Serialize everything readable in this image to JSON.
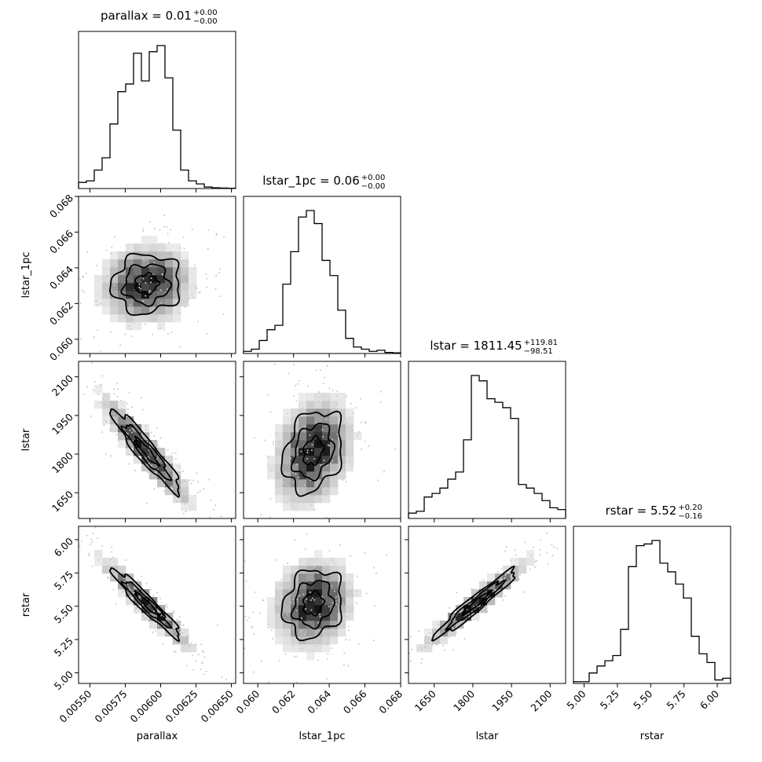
{
  "chart_data": {
    "type": "corner",
    "parameters": [
      "parallax",
      "lstar_1pc",
      "lstar",
      "rstar"
    ],
    "titles": [
      {
        "name": "parallax",
        "value": "0.01",
        "plus": "+0.00",
        "minus": "−0.00"
      },
      {
        "name": "lstar_1pc",
        "value": "0.06",
        "plus": "+0.00",
        "minus": "−0.00"
      },
      {
        "name": "lstar",
        "value": "1811.45",
        "plus": "+119.81",
        "minus": "−98.51"
      },
      {
        "name": "rstar",
        "value": "5.52",
        "plus": "+0.20",
        "minus": "−0.16"
      }
    ],
    "ranges": [
      [
        0.00542,
        0.00653
      ],
      [
        0.0592,
        0.068
      ],
      [
        1550,
        2160
      ],
      [
        4.92,
        6.1
      ]
    ],
    "ticks": [
      {
        "values": [
          0.0055,
          0.00575,
          0.006,
          0.00625,
          0.0065
        ],
        "labels": [
          "0.00550",
          "0.00575",
          "0.00600",
          "0.00625",
          "0.00650"
        ]
      },
      {
        "values": [
          0.06,
          0.062,
          0.064,
          0.066,
          0.068
        ],
        "labels": [
          "0.060",
          "0.062",
          "0.064",
          "0.066",
          "0.068"
        ]
      },
      {
        "values": [
          1650,
          1800,
          1950,
          2100
        ],
        "labels": [
          "1650",
          "1800",
          "1950",
          "2100"
        ]
      },
      {
        "values": [
          5.0,
          5.25,
          5.5,
          5.75,
          6.0
        ],
        "labels": [
          "5.00",
          "5.25",
          "5.50",
          "5.75",
          "6.00"
        ]
      }
    ],
    "histograms": [
      [
        4,
        5,
        12,
        20,
        42,
        63,
        68,
        88,
        70,
        89,
        93,
        72,
        38,
        12,
        5,
        3,
        1,
        0.5,
        0.3,
        0.2
      ],
      [
        1,
        2,
        6,
        11,
        13,
        32,
        47,
        63,
        66,
        60,
        43,
        36,
        20,
        7,
        3,
        2,
        1,
        1.5,
        0.5,
        0.3
      ],
      [
        3,
        4,
        12,
        14,
        17,
        22,
        26,
        44,
        80,
        77,
        67,
        65,
        62,
        56,
        19,
        17,
        14,
        10,
        6,
        5
      ],
      [
        1,
        1,
        6,
        10,
        13,
        16,
        31,
        67,
        79,
        80,
        82,
        69,
        64,
        57,
        49,
        27,
        17,
        12,
        2,
        3
      ]
    ]
  }
}
